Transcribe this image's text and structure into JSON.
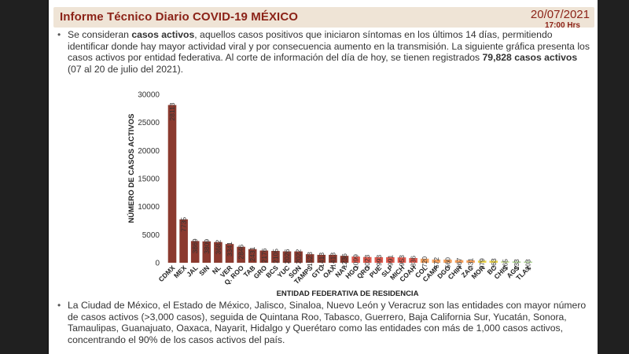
{
  "header": {
    "title": "Informe Técnico Diario COVID-19 MÉXICO",
    "date": "20/07/2021",
    "time": "17:00 Hrs"
  },
  "bullet1": {
    "t1": "Se consideran ",
    "b1": "casos activos",
    "t2": ", aquellos casos positivos que iniciaron síntomas en los últimos 14 días, permitiendo identificar donde hay mayor actividad viral y por consecuencia aumento en la transmisión. La siguiente gráfica presenta los casos activos por entidad federativa. Al corte de información del día de hoy, se tienen registrados ",
    "b2": "79,828 casos activos",
    "t3": " (07 al 20 de julio del 2021)."
  },
  "bullet2": {
    "text": "La Ciudad de México, el Estado de México, Jalisco, Sinaloa, Nuevo León y Veracruz son las entidades con mayor número de casos activos (>3,000 casos), seguida de Quintana Roo, Tabasco, Guerrero, Baja California Sur, Yucatán, Sonora, Tamaulipas, Guanajuato, Oaxaca, Nayarit, Hidalgo y Querétaro como las entidades con más de 1,000 casos activos, concentrando el 90% de los casos activos del país."
  },
  "colors": {
    "dark_red": "#8b3a2f",
    "red": "#e05a4e",
    "orange": "#f2a05e",
    "yellow": "#e8d24a",
    "light_green": "#cfe39a",
    "green": "#a9d18e"
  },
  "chart_data": {
    "type": "bar",
    "xlabel": "ENTIDAD FEDERATIVA DE RESIDENCIA",
    "ylabel": "NÚMERO DE CASOS ACTIVOS",
    "ylim": [
      0,
      30000
    ],
    "yticks": [
      "0",
      "5000",
      "10000",
      "15000",
      "20000",
      "25000",
      "30000"
    ],
    "grid": false,
    "categories": [
      "CDMX",
      "MEX",
      "JAL",
      "SIN",
      "NL",
      "VER",
      "Q. ROO",
      "TAB",
      "GRO",
      "BCS",
      "YUC",
      "SON",
      "TAMPS",
      "GTO",
      "OAX",
      "NAY",
      "HGO",
      "QRO",
      "PUE",
      "SLP",
      "MICH",
      "COAH",
      "COL",
      "CAMP",
      "DGO",
      "CHIH",
      "ZAC",
      "MOR",
      "BC",
      "CHIS",
      "AGS",
      "TLAX"
    ],
    "values": [
      28113,
      7735,
      3869,
      3809,
      3682,
      3341,
      2846,
      2431,
      2176,
      2105,
      2026,
      2022,
      1523,
      1413,
      1413,
      1236,
      1099,
      1023,
      993,
      991,
      953,
      836,
      720,
      572,
      560,
      467,
      431,
      379,
      363,
      265,
      233,
      203
    ],
    "value_labels": [
      "28113",
      "7735",
      "3869",
      "3809",
      "3682",
      "3341",
      "2846",
      "2431",
      "2176",
      "2105",
      "2026",
      "2022",
      "1523",
      "1413",
      "1413",
      "1236",
      "1099",
      "1023",
      "993",
      "991",
      "953",
      "836",
      "720",
      "572",
      "560",
      "467",
      "431",
      "379",
      "363",
      "265",
      "233",
      "203"
    ],
    "bar_colors": [
      "dark_red",
      "dark_red",
      "dark_red",
      "dark_red",
      "dark_red",
      "dark_red",
      "dark_red",
      "dark_red",
      "dark_red",
      "dark_red",
      "dark_red",
      "dark_red",
      "dark_red",
      "dark_red",
      "dark_red",
      "dark_red",
      "red",
      "red",
      "red",
      "red",
      "red",
      "red",
      "orange",
      "orange",
      "orange",
      "orange",
      "orange",
      "yellow",
      "yellow",
      "light_green",
      "green",
      "green"
    ]
  }
}
